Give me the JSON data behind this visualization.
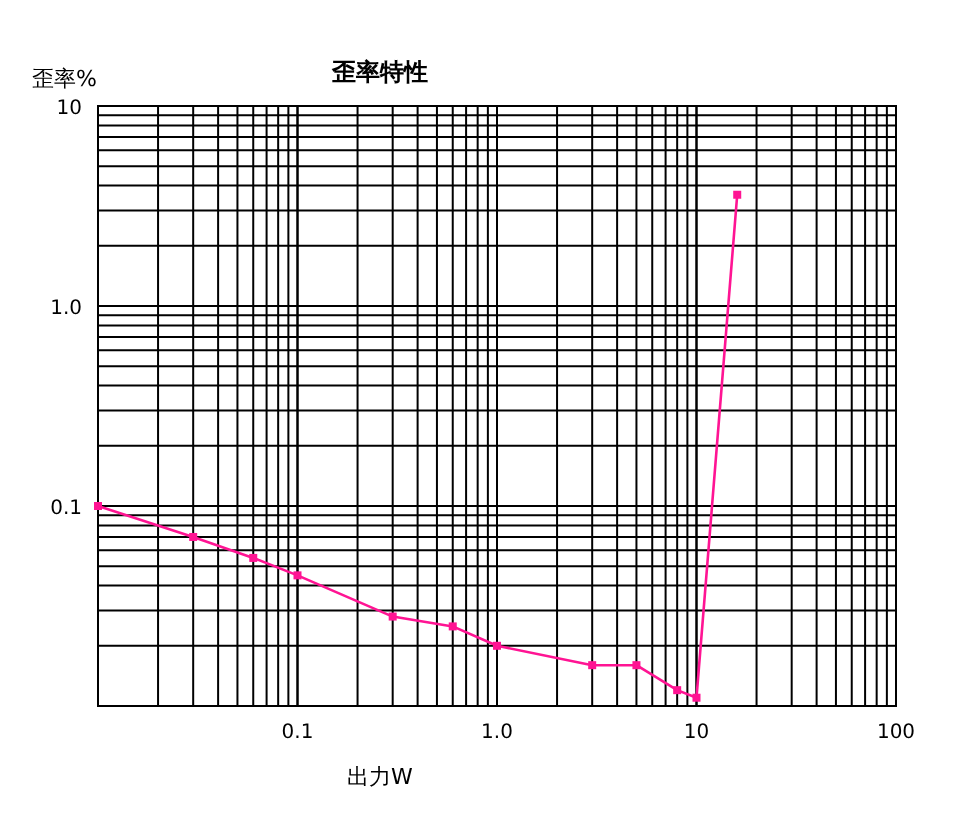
{
  "chart_data": {
    "type": "line",
    "title": "歪率特性",
    "xlabel": "出力W",
    "ylabel": "歪率%",
    "log": "xy",
    "grid": true,
    "marker": "square",
    "line_style": "solid",
    "xlim": [
      0.01,
      100
    ],
    "ylim": [
      0.01,
      10
    ],
    "xticks": [
      {
        "value": 0.01,
        "label": null
      },
      0.1,
      {
        "value": 1,
        "label": "1.0"
      },
      10,
      100
    ],
    "yticks": [
      {
        "value": 0.01,
        "label": null
      },
      0.1,
      {
        "value": 1,
        "label": "1.0"
      },
      10
    ],
    "series": [
      {
        "color": "#ff1493",
        "x": [
          0.01,
          0.03,
          0.06,
          0.1,
          0.3,
          0.6,
          1.0,
          3,
          5,
          8,
          10,
          16
        ],
        "values": [
          0.1,
          0.07,
          0.055,
          0.045,
          0.028,
          0.025,
          0.02,
          0.016,
          0.016,
          0.012,
          0.011,
          3.6
        ]
      }
    ]
  }
}
